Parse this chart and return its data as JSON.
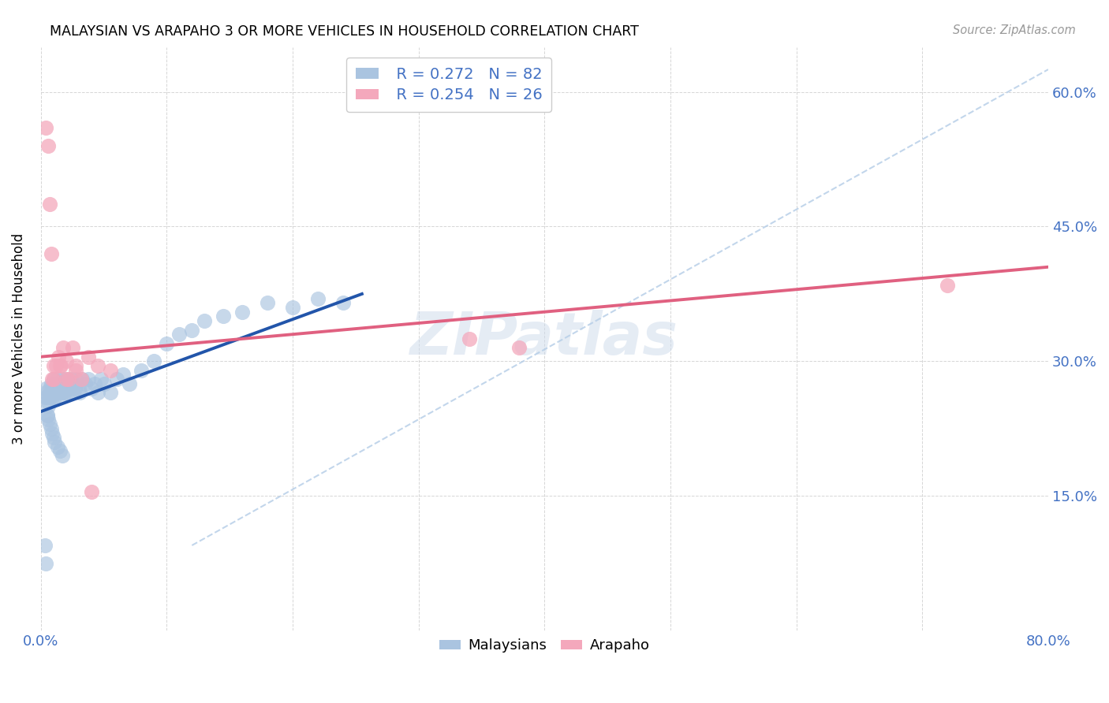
{
  "title": "MALAYSIAN VS ARAPAHO 3 OR MORE VEHICLES IN HOUSEHOLD CORRELATION CHART",
  "source": "Source: ZipAtlas.com",
  "ylabel": "3 or more Vehicles in Household",
  "xlim": [
    0.0,
    0.8
  ],
  "ylim": [
    0.0,
    0.65
  ],
  "xtick_vals": [
    0.0,
    0.1,
    0.2,
    0.3,
    0.4,
    0.5,
    0.6,
    0.7,
    0.8
  ],
  "xticklabels": [
    "0.0%",
    "",
    "",
    "",
    "",
    "",
    "",
    "",
    "80.0%"
  ],
  "ytick_vals": [
    0.0,
    0.15,
    0.3,
    0.45,
    0.6
  ],
  "yticklabels_right": [
    "",
    "15.0%",
    "30.0%",
    "45.0%",
    "60.0%"
  ],
  "watermark": "ZIPatlas",
  "malaysian_color": "#aac4e0",
  "arapaho_color": "#f4a8bc",
  "malaysian_line_color": "#2255aa",
  "arapaho_line_color": "#e06080",
  "dash_color": "#b8cfe8",
  "legend_R_malaysian": "R = 0.272",
  "legend_N_malaysian": "N = 82",
  "legend_R_arapaho": "R = 0.254",
  "legend_N_arapaho": "N = 26",
  "malaysian_line_x0": 0.0,
  "malaysian_line_y0": 0.244,
  "malaysian_line_x1": 0.255,
  "malaysian_line_y1": 0.375,
  "arapaho_line_x0": 0.0,
  "arapaho_line_y0": 0.305,
  "arapaho_line_x1": 0.8,
  "arapaho_line_y1": 0.405,
  "dash_line_x0": 0.12,
  "dash_line_y0": 0.095,
  "dash_line_x1": 0.8,
  "dash_line_y1": 0.625,
  "malaysian_x": [
    0.003,
    0.004,
    0.004,
    0.005,
    0.005,
    0.006,
    0.006,
    0.007,
    0.007,
    0.008,
    0.008,
    0.009,
    0.009,
    0.01,
    0.01,
    0.01,
    0.011,
    0.011,
    0.012,
    0.012,
    0.013,
    0.013,
    0.014,
    0.014,
    0.015,
    0.015,
    0.016,
    0.016,
    0.017,
    0.017,
    0.018,
    0.018,
    0.019,
    0.019,
    0.02,
    0.02,
    0.021,
    0.022,
    0.023,
    0.024,
    0.025,
    0.026,
    0.027,
    0.028,
    0.03,
    0.031,
    0.033,
    0.035,
    0.038,
    0.04,
    0.043,
    0.045,
    0.048,
    0.05,
    0.055,
    0.06,
    0.065,
    0.07,
    0.08,
    0.09,
    0.1,
    0.11,
    0.12,
    0.13,
    0.145,
    0.16,
    0.18,
    0.2,
    0.22,
    0.24,
    0.005,
    0.006,
    0.007,
    0.008,
    0.009,
    0.01,
    0.011,
    0.013,
    0.015,
    0.017,
    0.003,
    0.004
  ],
  "malaysian_y": [
    0.26,
    0.27,
    0.265,
    0.26,
    0.24,
    0.25,
    0.255,
    0.27,
    0.26,
    0.265,
    0.275,
    0.26,
    0.27,
    0.265,
    0.28,
    0.27,
    0.26,
    0.275,
    0.27,
    0.265,
    0.28,
    0.27,
    0.265,
    0.275,
    0.26,
    0.27,
    0.275,
    0.265,
    0.27,
    0.28,
    0.265,
    0.275,
    0.27,
    0.265,
    0.275,
    0.28,
    0.265,
    0.275,
    0.27,
    0.28,
    0.265,
    0.275,
    0.27,
    0.28,
    0.27,
    0.265,
    0.28,
    0.275,
    0.28,
    0.27,
    0.275,
    0.265,
    0.28,
    0.275,
    0.265,
    0.28,
    0.285,
    0.275,
    0.29,
    0.3,
    0.32,
    0.33,
    0.335,
    0.345,
    0.35,
    0.355,
    0.365,
    0.36,
    0.37,
    0.365,
    0.24,
    0.235,
    0.23,
    0.225,
    0.22,
    0.215,
    0.21,
    0.205,
    0.2,
    0.195,
    0.095,
    0.075
  ],
  "arapaho_x": [
    0.004,
    0.006,
    0.007,
    0.009,
    0.01,
    0.012,
    0.014,
    0.016,
    0.018,
    0.02,
    0.022,
    0.025,
    0.028,
    0.032,
    0.038,
    0.04,
    0.045,
    0.055,
    0.34,
    0.38,
    0.72,
    0.008,
    0.01,
    0.015,
    0.02,
    0.028
  ],
  "arapaho_y": [
    0.56,
    0.54,
    0.475,
    0.28,
    0.295,
    0.295,
    0.305,
    0.295,
    0.315,
    0.3,
    0.28,
    0.315,
    0.29,
    0.28,
    0.305,
    0.155,
    0.295,
    0.29,
    0.325,
    0.315,
    0.385,
    0.42,
    0.28,
    0.295,
    0.28,
    0.295
  ]
}
